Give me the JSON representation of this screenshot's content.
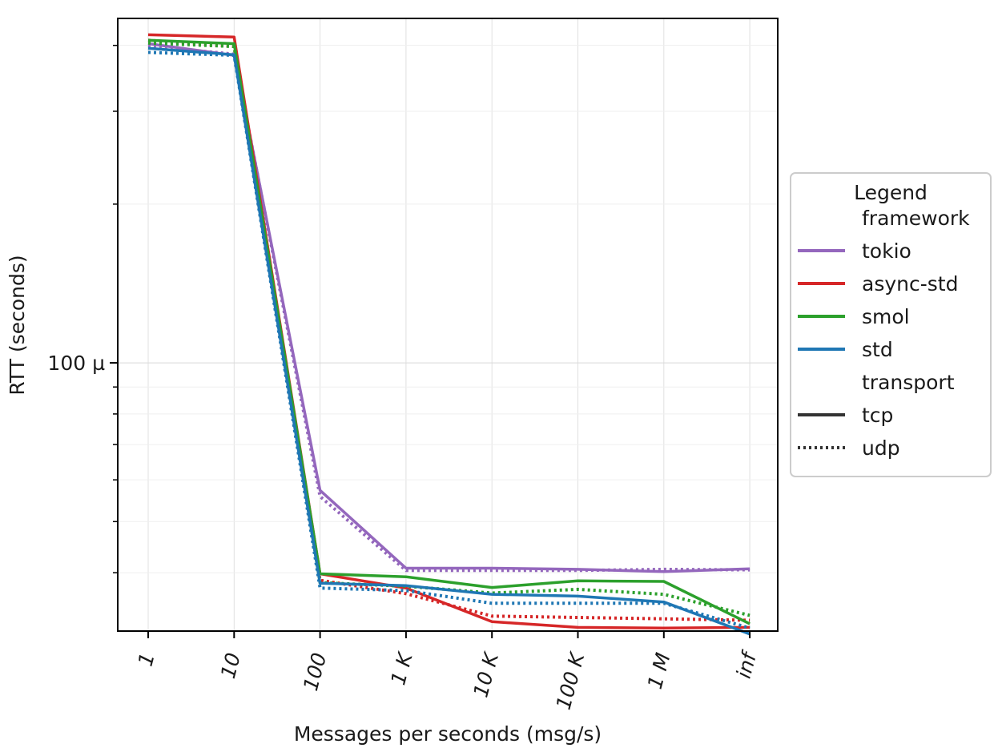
{
  "chart_data": {
    "type": "line",
    "title": "",
    "xlabel": "Messages per seconds (msg/s)",
    "ylabel": "RTT (seconds)",
    "y_scale": "log",
    "ylim": [
      3.1e-05,
      0.00045
    ],
    "categories": [
      "1",
      "10",
      "100",
      "1 K",
      "10 K",
      "100 K",
      "1 M",
      "inf"
    ],
    "y_tick_labels": [
      {
        "value": 0.0001,
        "label": "100 µ"
      }
    ],
    "grid": true,
    "legend": {
      "title": "Legend",
      "placement": "outside-right",
      "group_framework": "framework",
      "group_transport": "transport",
      "tcp_label": "tcp",
      "udp_label": "udp"
    },
    "series": [
      {
        "framework": "tokio",
        "transport": "tcp",
        "color": "#9467bd",
        "values": [
          0.000403,
          0.000383,
          5.73e-05,
          4.08e-05,
          4.08e-05,
          4.06e-05,
          4.02e-05,
          4.07e-05
        ]
      },
      {
        "framework": "tokio",
        "transport": "udp",
        "color": "#9467bd",
        "values": [
          0.000399,
          0.000385,
          5.58e-05,
          4.04e-05,
          4.04e-05,
          4.04e-05,
          4.06e-05,
          4.05e-05
        ]
      },
      {
        "framework": "async-std",
        "transport": "tcp",
        "color": "#d62728",
        "values": [
          0.000419,
          0.000415,
          3.98e-05,
          3.74e-05,
          3.23e-05,
          3.15e-05,
          3.14e-05,
          3.15e-05
        ]
      },
      {
        "framework": "async-std",
        "transport": "udp",
        "color": "#d62728",
        "values": [
          0.000409,
          0.000398,
          3.87e-05,
          3.65e-05,
          3.31e-05,
          3.29e-05,
          3.27e-05,
          3.25e-05
        ]
      },
      {
        "framework": "smol",
        "transport": "tcp",
        "color": "#2ca02c",
        "values": [
          0.000409,
          0.000403,
          3.98e-05,
          3.93e-05,
          3.75e-05,
          3.86e-05,
          3.85e-05,
          3.2e-05
        ]
      },
      {
        "framework": "smol",
        "transport": "udp",
        "color": "#2ca02c",
        "values": [
          0.000404,
          0.000398,
          3.83e-05,
          3.77e-05,
          3.66e-05,
          3.72e-05,
          3.64e-05,
          3.32e-05
        ]
      },
      {
        "framework": "std",
        "transport": "tcp",
        "color": "#1f77b4",
        "values": [
          0.000395,
          0.000384,
          3.82e-05,
          3.78e-05,
          3.64e-05,
          3.61e-05,
          3.52e-05,
          3.06e-05
        ]
      },
      {
        "framework": "std",
        "transport": "udp",
        "color": "#1f77b4",
        "values": [
          0.000388,
          0.000383,
          3.74e-05,
          3.7e-05,
          3.5e-05,
          3.5e-05,
          3.5e-05,
          3.14e-05
        ]
      }
    ]
  }
}
